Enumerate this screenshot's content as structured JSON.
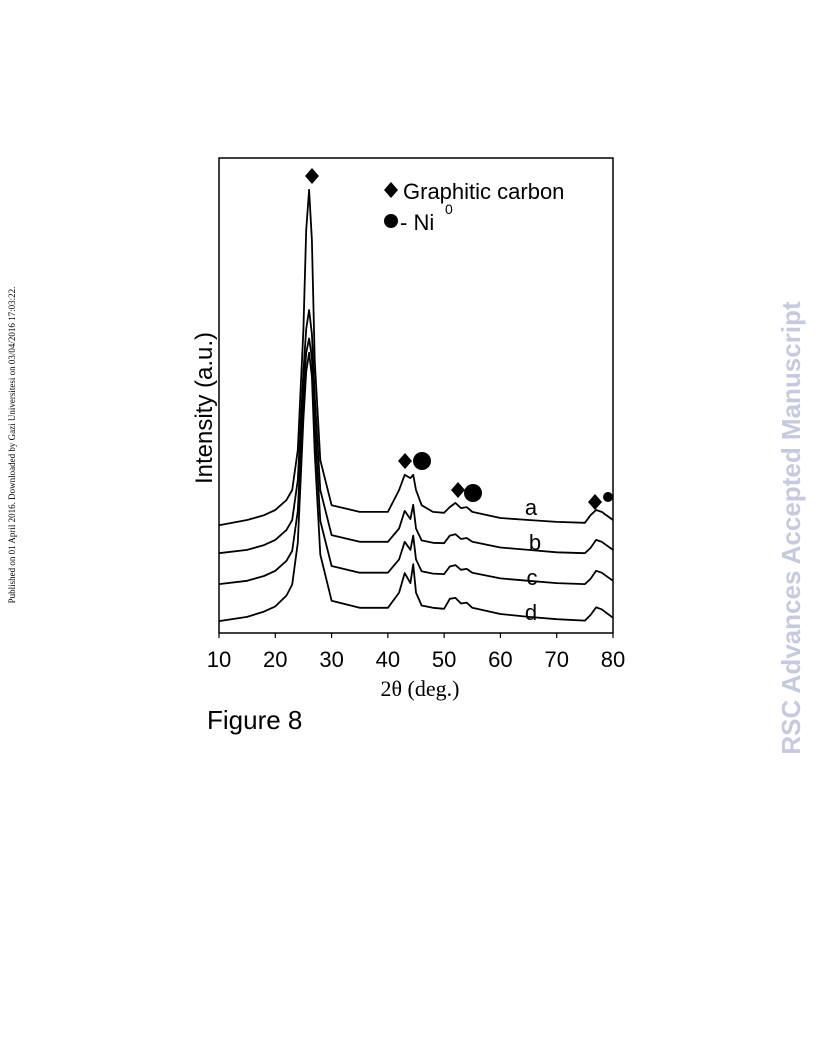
{
  "side_note": "Published on 01 April 2016. Downloaded by Gazi Universitesi on 03/04/2016 17:03:22.",
  "watermark": "RSC Advances Accepted Manuscript",
  "caption": "Figure 8",
  "chart_data": {
    "type": "line",
    "xlabel": "2θ (deg.)",
    "ylabel": "Intensity (a.u.)",
    "legend": {
      "graphitic": "Graphitic carbon",
      "nickel": "- Ni",
      "nickel_superscript": "0"
    },
    "x": [
      10,
      15,
      18,
      20,
      22,
      23,
      24,
      25,
      25.5,
      26,
      26.5,
      27,
      28,
      30,
      35,
      40,
      42,
      43,
      44,
      44.5,
      45,
      46,
      48,
      50,
      51,
      52,
      53,
      54,
      55,
      60,
      65,
      70,
      75,
      76,
      77,
      78,
      80
    ],
    "xlim": [
      10,
      80
    ],
    "xticks": [
      10,
      20,
      30,
      40,
      50,
      60,
      70,
      80
    ],
    "ylim": [
      0,
      100
    ],
    "series": [
      {
        "name": "a",
        "color": "#000000",
        "values": [
          22.7,
          23.8,
          24.8,
          25.9,
          28.0,
          30.1,
          38.5,
          63.8,
          84.8,
          93.3,
          82.7,
          57.5,
          36.4,
          26.9,
          25.5,
          25.5,
          30.1,
          33.3,
          32.6,
          33.3,
          30.1,
          26.9,
          25.5,
          25.3,
          26.5,
          27.4,
          26.3,
          26.5,
          25.5,
          24.2,
          23.8,
          23.4,
          23.2,
          24.8,
          25.9,
          25.5,
          23.8
        ]
      },
      {
        "name": "b",
        "color": "#000000",
        "values": [
          16.8,
          17.5,
          18.5,
          19.6,
          21.7,
          23.8,
          32.2,
          55.0,
          64.0,
          68.0,
          63.0,
          50.0,
          30.1,
          20.6,
          19.2,
          19.2,
          22.0,
          25.7,
          24.0,
          27.0,
          22.0,
          19.5,
          19.0,
          18.9,
          20.5,
          20.8,
          19.8,
          20.0,
          19.2,
          18.0,
          17.5,
          17.0,
          16.8,
          17.9,
          19.6,
          19.2,
          17.5
        ]
      },
      {
        "name": "c",
        "color": "#000000",
        "values": [
          10.3,
          11.0,
          12.0,
          13.1,
          15.2,
          17.3,
          25.7,
          50.0,
          59.0,
          62.0,
          58.0,
          44.0,
          23.6,
          14.1,
          12.7,
          12.7,
          15.5,
          19.2,
          17.5,
          20.5,
          15.5,
          13.0,
          12.5,
          12.4,
          14.0,
          14.3,
          13.3,
          13.5,
          12.7,
          11.5,
          11.0,
          10.5,
          10.3,
          11.4,
          13.1,
          12.7,
          11.0
        ]
      },
      {
        "name": "d",
        "color": "#000000",
        "values": [
          2.5,
          3.4,
          4.5,
          5.6,
          7.9,
          10.2,
          19.0,
          45.0,
          55.0,
          59.0,
          54.0,
          38.0,
          16.5,
          6.8,
          5.3,
          5.3,
          8.5,
          12.6,
          10.5,
          14.5,
          8.5,
          5.8,
          5.3,
          5.1,
          7.2,
          7.4,
          6.2,
          6.4,
          5.3,
          4.0,
          3.4,
          2.9,
          2.6,
          3.8,
          5.4,
          5.0,
          3.2
        ]
      }
    ]
  }
}
